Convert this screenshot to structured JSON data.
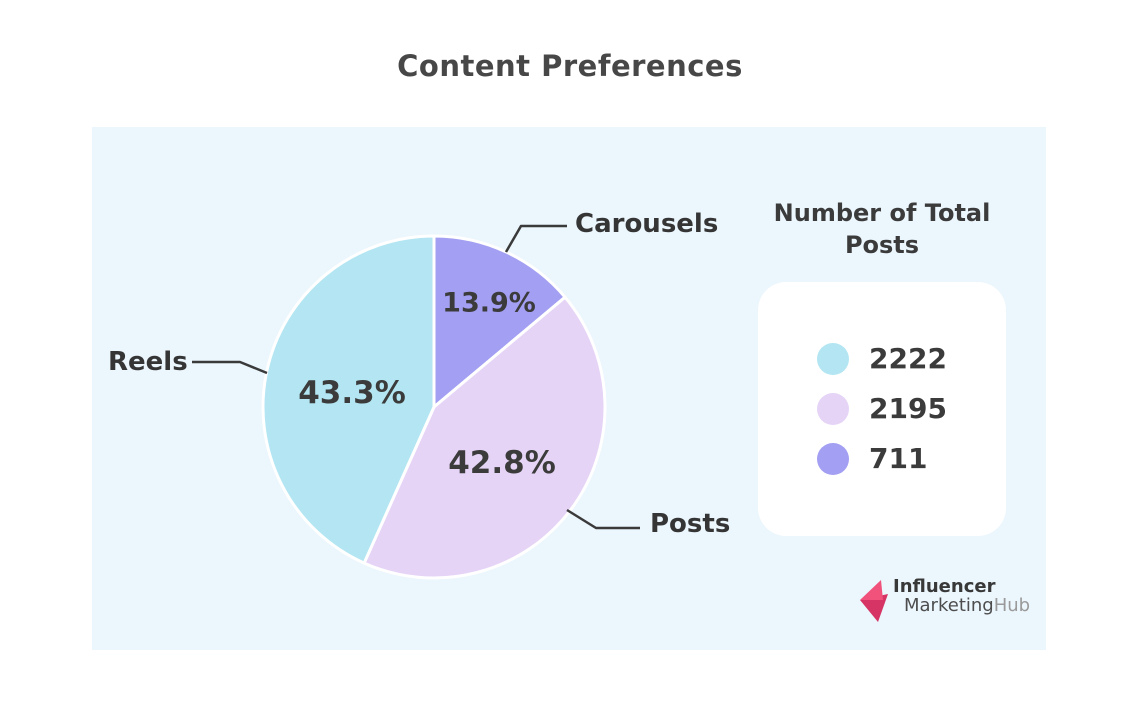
{
  "title": "Content Preferences",
  "chart_data": {
    "type": "pie",
    "title": "Content Preferences",
    "start_angle_deg": -90,
    "direction": "clockwise",
    "slices": [
      {
        "label": "Carousels",
        "pct": 13.9,
        "pct_label": "13.9%",
        "value": 711,
        "color": "#a39ff2"
      },
      {
        "label": "Posts",
        "pct": 42.8,
        "pct_label": "42.8%",
        "value": 2195,
        "color": "#e6d4f7"
      },
      {
        "label": "Reels",
        "pct": 43.3,
        "pct_label": "43.3%",
        "value": 2222,
        "color": "#b3e6f2"
      }
    ],
    "legend": {
      "title": "Number of Total Posts",
      "position": "right",
      "entries": [
        {
          "value": 2222,
          "color": "#b3e6f2",
          "slice": "Reels"
        },
        {
          "value": 2195,
          "color": "#e6d4f7",
          "slice": "Posts"
        },
        {
          "value": 711,
          "color": "#a39ff2",
          "slice": "Carousels"
        }
      ]
    },
    "annotations": [
      "callout labels with leader lines for Reels, Carousels, Posts"
    ]
  },
  "colors": {
    "panel_background": "#ebf6fd",
    "page_background": "#ffffff",
    "text_dark": "#3b3b3b",
    "leader_line": "#3a3a3a",
    "logo_pink_light": "#f0527c",
    "logo_pink_dark": "#d63464"
  },
  "logo": {
    "line1": "Influencer",
    "line2_part1": "Marketing",
    "line2_part2": "Hub"
  }
}
